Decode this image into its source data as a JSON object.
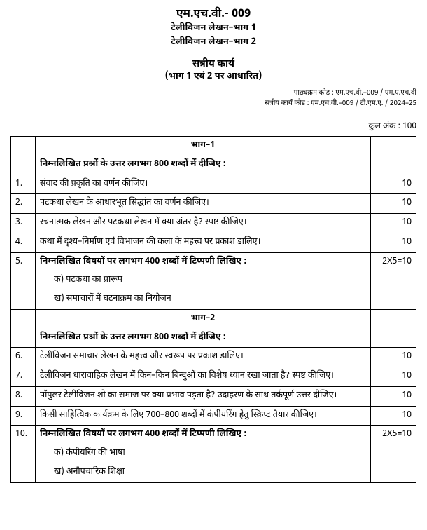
{
  "header": {
    "course_code": "एम.एच.वी.- 009",
    "title_line1": "टेलीविजन लेखन–भाग 1",
    "title_line2": "टेलीविजन लेखन–भाग 2",
    "assignment_title": "सत्रीय कार्य",
    "assignment_subtitle": "(भाग 1 एवं 2 पर आधारित)"
  },
  "meta": {
    "line1": "पाठ्यक्रम कोड : एम.एच.वी.–009 / एम.ए.एच.वी",
    "line2": "सत्रीय कार्य कोड : एम.एच.वी.–009 / टी.एम.ए. / 2024–25"
  },
  "total_marks": "कुल अंक : 100",
  "section1": {
    "title": "भाग–1",
    "instruction": "निम्नलिखित प्रश्नों के उत्तर लगभग 800 शब्दों में दीजिए :"
  },
  "q1": {
    "num": "1.",
    "text": "संवाद की प्रकृति का वर्णन कीजिए।",
    "marks": "10"
  },
  "q2": {
    "num": "2.",
    "text": "पटकथा लेखन के आधारभूत सिद्धांत का वर्णन कीजिए।",
    "marks": "10"
  },
  "q3": {
    "num": "3.",
    "text": "रचनात्मक लेखन और पटकथा लेखन में क्या अंतर है? स्पष्ट कीजिए।",
    "marks": "10"
  },
  "q4": {
    "num": "4.",
    "text": "कथा में दृश्य–निर्माण एवं विभाजन की कला के महत्त्व पर प्रकाश डालिए।",
    "marks": "10"
  },
  "q5": {
    "num": "5.",
    "text": "निम्नलिखित विषयों पर लगभग 400 शब्दों में टिप्पणी लिखिए :",
    "marks": "2X5=10",
    "sub_a": "क)    पटकथा का प्रारूप",
    "sub_b": "ख)    समाचारों में घटनाक्रम का नियोजन"
  },
  "section2": {
    "title": "भाग–2",
    "instruction": "निम्नलिखित प्रश्नों के उत्तर लगभग 800 शब्दों में दीजिए :"
  },
  "q6": {
    "num": "6.",
    "text": "टेलीविजन समाचार लेखन के महत्त्व और स्वरूप पर प्रकाश डालिए।",
    "marks": "10"
  },
  "q7": {
    "num": "7.",
    "text": "टेलीविजन धारावाहिक लेखन में किन–किन बिन्दुओं का विशेष ध्यान रखा जाता है? स्पष्ट कीजिए।",
    "marks": "10"
  },
  "q8": {
    "num": "8.",
    "text": "पॉपुलर टेलीविजन शो का समाज पर क्या प्रभाव पड़ता है? उदाहरण के साथ तर्कपूर्ण उत्तर दीजिए।",
    "marks": "10"
  },
  "q9": {
    "num": "9.",
    "text": "किसी साहित्यिक कार्यक्रम के लिए 700–800 शब्दों में कंपीयरिंग हेतु स्क्रिप्ट तैयार कीजिए।",
    "marks": "10"
  },
  "q10": {
    "num": "10.",
    "text": "निम्नलिखित विषयों पर लगभग 400 शब्दों में टिप्पणी लिखिए :",
    "marks": "2X5=10",
    "sub_a": "क)    कंपीयरिंग की भाषा",
    "sub_b": "ख)    अनौपचारिक शिक्षा"
  }
}
